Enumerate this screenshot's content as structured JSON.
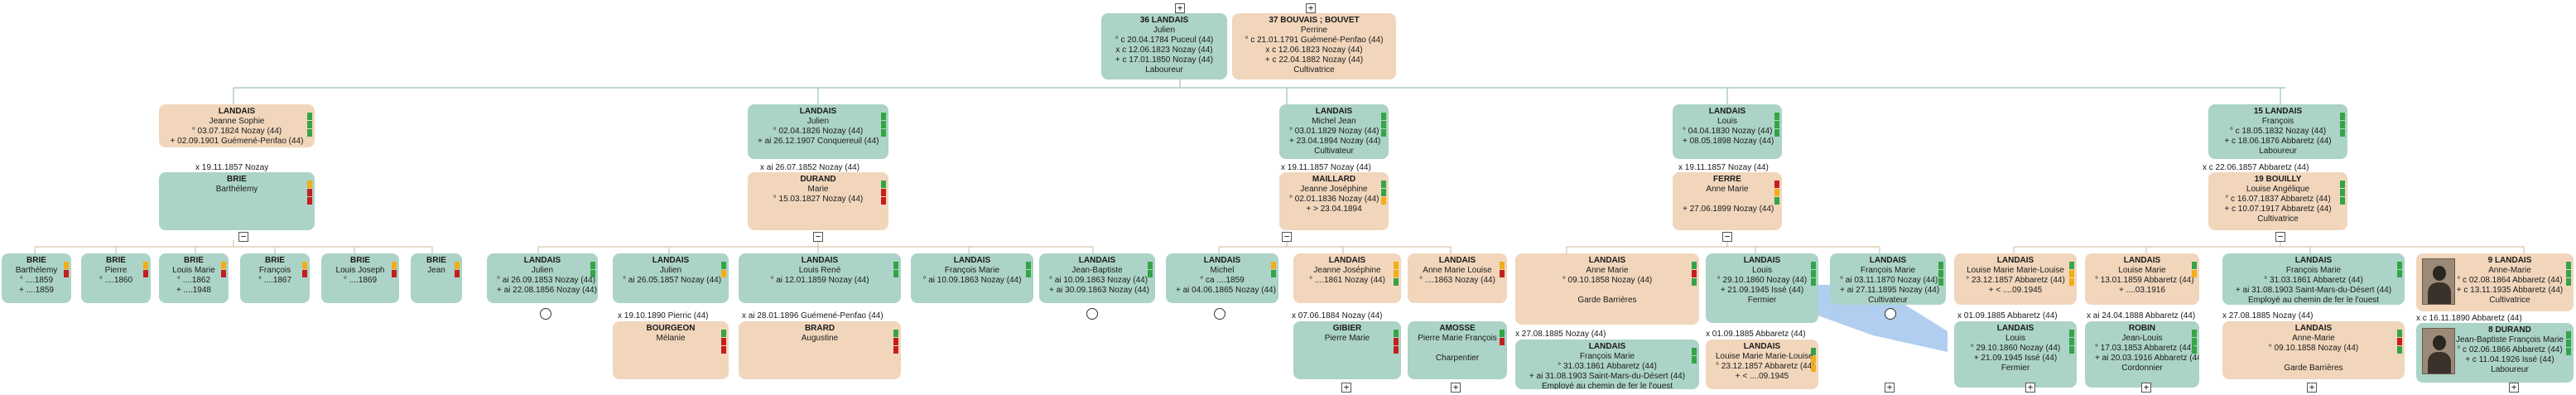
{
  "colors": {
    "male": "#acd3c7",
    "female": "#f1d6bc",
    "link_blue": "#a9c9ef",
    "line": "#9bc2ba"
  },
  "persons": [
    {
      "id": "p36",
      "sex": "m",
      "sosa": "36",
      "surname": "LANDAIS",
      "given": "Julien",
      "lines": [
        "° c 20.04.1784 Puceul (44)",
        "x c 12.06.1823 Nozay (44)",
        "+ c 17.01.1850 Nozay (44)",
        "Laboureur"
      ],
      "flags": []
    },
    {
      "id": "p37",
      "sex": "f",
      "sosa": "37",
      "surname": "BOUVAIS ; BOUVET",
      "given": "Perrine",
      "lines": [
        "° c 21.01.1791 Guémené-Penfao (44)",
        "x c 12.06.1823 Nozay (44)",
        "+ c 22.04.1882 Nozay (44)",
        "Cultivatrice"
      ],
      "flags": []
    },
    {
      "id": "a1",
      "sex": "f",
      "sosa": "",
      "surname": "LANDAIS",
      "given": "Jeanne Sophie",
      "lines": [
        "° 03.07.1824 Nozay (44)",
        "+ 02.09.1901 Guémené-Penfao (44)"
      ],
      "flags": [
        "g",
        "g",
        "g"
      ]
    },
    {
      "id": "a1s",
      "sex": "m",
      "sosa": "",
      "surname": "BRIE",
      "given": "Barthélemy",
      "lines": [],
      "flags": [
        "y",
        "r",
        "r"
      ]
    },
    {
      "id": "a2",
      "sex": "m",
      "sosa": "",
      "surname": "LANDAIS",
      "given": "Julien",
      "lines": [
        "° 02.04.1826 Nozay (44)",
        "+ ai 26.12.1907 Conquereuil (44)"
      ],
      "flags": [
        "g",
        "g",
        "g"
      ]
    },
    {
      "id": "a2s",
      "sex": "f",
      "sosa": "",
      "surname": "DURAND",
      "given": "Marie",
      "lines": [
        "° 15.03.1827 Nozay (44)"
      ],
      "flags": [
        "g",
        "r",
        "r"
      ]
    },
    {
      "id": "a3",
      "sex": "m",
      "sosa": "",
      "surname": "LANDAIS",
      "given": "Michel Jean",
      "lines": [
        "° 03.01.1829 Nozay (44)",
        "+ 23.04.1894 Nozay (44)",
        "Cultivateur"
      ],
      "flags": [
        "g",
        "g",
        "g"
      ]
    },
    {
      "id": "a3s",
      "sex": "f",
      "sosa": "",
      "surname": "MAILLARD",
      "given": "Jeanne Joséphine",
      "lines": [
        "° 02.01.1836 Nozay (44)",
        "+ > 23.04.1894"
      ],
      "flags": [
        "g",
        "g",
        "y"
      ]
    },
    {
      "id": "a4",
      "sex": "m",
      "sosa": "",
      "surname": "LANDAIS",
      "given": "Louis",
      "lines": [
        "° 04.04.1830 Nozay (44)",
        "+ 08.05.1898 Nozay (44)"
      ],
      "flags": [
        "g",
        "g",
        "g"
      ]
    },
    {
      "id": "a4s",
      "sex": "f",
      "sosa": "",
      "surname": "FERRE",
      "given": "Anne Marie",
      "lines": [
        "",
        "+ 27.06.1899 Nozay (44)"
      ],
      "flags": [
        "r",
        "y",
        "g"
      ]
    },
    {
      "id": "a5",
      "sex": "m",
      "sosa": "15",
      "surname": "LANDAIS",
      "given": "François",
      "lines": [
        "° c 18.05.1832 Nozay (44)",
        "+ c 18.06.1876 Abbaretz (44)",
        "Laboureur"
      ],
      "flags": [
        "g",
        "g",
        "g"
      ]
    },
    {
      "id": "a5s",
      "sex": "f",
      "sosa": "19",
      "surname": "BOUILLY",
      "given": "Louise Angélique",
      "lines": [
        "° c 16.07.1837 Abbaretz (44)",
        "+ c 10.07.1917 Abbaretz (44)",
        "Cultivatrice"
      ],
      "flags": [
        "g",
        "g",
        "g"
      ]
    },
    {
      "id": "c1",
      "sex": "m",
      "sosa": "",
      "surname": "BRIE",
      "given": "Barthélemy",
      "lines": [
        "° ....1859",
        "+ ....1859"
      ],
      "flags": [
        "y",
        "r"
      ]
    },
    {
      "id": "c2",
      "sex": "m",
      "sosa": "",
      "surname": "BRIE",
      "given": "Pierre",
      "lines": [
        "° ....1860"
      ],
      "flags": [
        "y",
        "r"
      ]
    },
    {
      "id": "c3",
      "sex": "m",
      "sosa": "",
      "surname": "BRIE",
      "given": "Louis Marie",
      "lines": [
        "° ....1862",
        "+ ....1948"
      ],
      "flags": [
        "y",
        "r"
      ]
    },
    {
      "id": "c4",
      "sex": "m",
      "sosa": "",
      "surname": "BRIE",
      "given": "François",
      "lines": [
        "° ....1867"
      ],
      "flags": [
        "y",
        "r"
      ]
    },
    {
      "id": "c5",
      "sex": "m",
      "sosa": "",
      "surname": "BRIE",
      "given": "Louis Joseph",
      "lines": [
        "° ....1869"
      ],
      "flags": [
        "y",
        "r"
      ]
    },
    {
      "id": "c6",
      "sex": "m",
      "sosa": "",
      "surname": "BRIE",
      "given": "Jean",
      "lines": [],
      "flags": [
        "y",
        "r"
      ]
    },
    {
      "id": "c7",
      "sex": "m",
      "sosa": "",
      "surname": "LANDAIS",
      "given": "Julien",
      "lines": [
        "° ai 26.09.1853 Nozay (44)",
        "+ ai 22.08.1856 Nozay (44)"
      ],
      "flags": [
        "g",
        "g"
      ]
    },
    {
      "id": "c8",
      "sex": "m",
      "sosa": "",
      "surname": "LANDAIS",
      "given": "Julien",
      "lines": [
        "° ai 26.05.1857 Nozay (44)"
      ],
      "flags": [
        "g",
        "y"
      ]
    },
    {
      "id": "c8s",
      "sex": "f",
      "sosa": "",
      "surname": "BOURGEON",
      "given": "Mélanie",
      "lines": [],
      "flags": [
        "g",
        "r",
        "r"
      ]
    },
    {
      "id": "c9",
      "sex": "m",
      "sosa": "",
      "surname": "LANDAIS",
      "given": "Louis René",
      "lines": [
        "° ai 12.01.1859 Nozay (44)"
      ],
      "flags": [
        "g",
        "g"
      ]
    },
    {
      "id": "c9s",
      "sex": "f",
      "sosa": "",
      "surname": "BRARD",
      "given": "Augustine",
      "lines": [],
      "flags": [
        "g",
        "r",
        "r"
      ]
    },
    {
      "id": "c10",
      "sex": "m",
      "sosa": "",
      "surname": "LANDAIS",
      "given": "François Marie",
      "lines": [
        "° ai 10.09.1863 Nozay (44)"
      ],
      "flags": [
        "g",
        "g"
      ]
    },
    {
      "id": "c11",
      "sex": "m",
      "sosa": "",
      "surname": "LANDAIS",
      "given": "Jean-Baptiste",
      "lines": [
        "° ai 10.09.1863 Nozay (44)",
        "+ ai 30.09.1863 Nozay (44)"
      ],
      "flags": [
        "g",
        "g"
      ]
    },
    {
      "id": "c12",
      "sex": "m",
      "sosa": "",
      "surname": "LANDAIS",
      "given": "Michel",
      "lines": [
        "° ca ....1859",
        "+ ai 04.06.1865 Nozay (44)"
      ],
      "flags": [
        "y",
        "g"
      ]
    },
    {
      "id": "c13",
      "sex": "f",
      "sosa": "",
      "surname": "LANDAIS",
      "given": "Jeanne Joséphine",
      "lines": [
        "° ....1861 Nozay (44)"
      ],
      "flags": [
        "y",
        "y",
        "g"
      ]
    },
    {
      "id": "c13s",
      "sex": "m",
      "sosa": "",
      "surname": "GIBIER",
      "given": "Pierre Marie",
      "lines": [],
      "flags": [
        "g",
        "r",
        "r"
      ]
    },
    {
      "id": "c14",
      "sex": "f",
      "sosa": "",
      "surname": "LANDAIS",
      "given": "Anne Marie Louise",
      "lines": [
        "° ....1863 Nozay (44)"
      ],
      "flags": [
        "y",
        "r"
      ]
    },
    {
      "id": "c14s",
      "sex": "m",
      "sosa": "",
      "surname": "AMOSSE",
      "given": "Pierre Marie François",
      "lines": [
        "",
        "Charpentier"
      ],
      "flags": [
        "g",
        "r"
      ]
    },
    {
      "id": "c15",
      "sex": "f",
      "sosa": "",
      "surname": "LANDAIS",
      "given": "Anne Marie",
      "lines": [
        "° 09.10.1858 Nozay (44)",
        "",
        "Garde Barrières"
      ],
      "flags": [
        "g",
        "r",
        "g"
      ]
    },
    {
      "id": "c15s",
      "sex": "m",
      "sosa": "",
      "surname": "LANDAIS",
      "given": "François Marie",
      "lines": [
        "° 31.03.1861 Abbaretz (44)",
        "+ ai 31.08.1903 Saint-Mars-du-Désert (44)",
        "Employé au chemin de fer le l'ouest"
      ],
      "flags": [
        "g",
        "g"
      ]
    },
    {
      "id": "c16",
      "sex": "m",
      "sosa": "",
      "surname": "LANDAIS",
      "given": "Louis",
      "lines": [
        "° 29.10.1860 Nozay (44)",
        "+ 21.09.1945 Issé (44)",
        "Fermier"
      ],
      "flags": [
        "g",
        "g",
        "g"
      ]
    },
    {
      "id": "c16s",
      "sex": "f",
      "sosa": "",
      "surname": "LANDAIS",
      "given": "Louise Marie Marie-Louise",
      "lines": [
        "° 23.12.1857 Abbaretz (44)",
        "+ < ....09.1945"
      ],
      "flags": [
        "g",
        "y",
        "y"
      ]
    },
    {
      "id": "c17",
      "sex": "m",
      "sosa": "",
      "surname": "LANDAIS",
      "given": "François Marie",
      "lines": [
        "° ai 03.11.1870 Nozay (44)",
        "+ ai 27.11.1895 Nozay (44)",
        "Cultivateur"
      ],
      "flags": [
        "g",
        "g",
        "g"
      ]
    },
    {
      "id": "c18",
      "sex": "f",
      "sosa": "",
      "surname": "LANDAIS",
      "given": "Louise Marie Marie-Louise",
      "lines": [
        "° 23.12.1857 Abbaretz (44)",
        "+ < ....09.1945"
      ],
      "flags": [
        "g",
        "y",
        "y"
      ]
    },
    {
      "id": "c18s",
      "sex": "m",
      "sosa": "",
      "surname": "LANDAIS",
      "given": "Louis",
      "lines": [
        "° 29.10.1860 Nozay (44)",
        "+ 21.09.1945 Issé (44)",
        "Fermier"
      ],
      "flags": [
        "g",
        "g",
        "g"
      ]
    },
    {
      "id": "c19",
      "sex": "f",
      "sosa": "",
      "surname": "LANDAIS",
      "given": "Louise Marie",
      "lines": [
        "° 13.01.1859 Abbaretz (44)",
        "+ ....03.1916"
      ],
      "flags": [
        "g",
        "y"
      ]
    },
    {
      "id": "c19s",
      "sex": "m",
      "sosa": "",
      "surname": "ROBIN",
      "given": "Jean-Louis",
      "lines": [
        "° 17.03.1853 Abbaretz (44)",
        "+ ai 20.03.1916 Abbaretz (44)",
        "Cordonnier"
      ],
      "flags": [
        "g",
        "g",
        "g"
      ]
    },
    {
      "id": "c20",
      "sex": "m",
      "sosa": "",
      "surname": "LANDAIS",
      "given": "François Marie",
      "lines": [
        "° 31.03.1861 Abbaretz (44)",
        "+ ai 31.08.1903 Saint-Mars-du-Désert (44)",
        "Employé au chemin de fer le l'ouest"
      ],
      "flags": [
        "g",
        "g"
      ]
    },
    {
      "id": "c20s",
      "sex": "f",
      "sosa": "",
      "surname": "LANDAIS",
      "given": "Anne-Marie",
      "lines": [
        "° 09.10.1858 Nozay (44)",
        "",
        "Garde Barrières"
      ],
      "flags": [
        "g",
        "r",
        "g"
      ]
    },
    {
      "id": "c21",
      "sex": "f",
      "sosa": "9",
      "surname": "LANDAIS",
      "given": "Anne-Marie",
      "lines": [
        "° c 02.08.1864 Abbaretz (44)",
        "+ c 13.11.1935 Abbaretz (44)",
        "Cultivatrice"
      ],
      "flags": [
        "g",
        "g",
        "g"
      ]
    },
    {
      "id": "c21s",
      "sex": "m",
      "sosa": "8",
      "surname": "DURAND",
      "given": "Jean-Baptiste François Marie",
      "lines": [
        "° c 02.06.1866 Abbaretz (44)",
        "+ c 11.04.1926 Issé (44)",
        "Laboureur"
      ],
      "flags": [
        "g",
        "g",
        "g"
      ]
    }
  ],
  "marriages": [
    {
      "id": "m_a1",
      "text": "x 19.11.1857 Nozay"
    },
    {
      "id": "m_a2",
      "text": "x ai 26.07.1852 Nozay (44)"
    },
    {
      "id": "m_a3",
      "text": "x 19.11.1857 Nozay (44)"
    },
    {
      "id": "m_a4",
      "text": "x 19.11.1857 Nozay (44)"
    },
    {
      "id": "m_a5",
      "text": "x c 22.06.1857 Abbaretz (44)"
    },
    {
      "id": "m_c8",
      "text": "x 19.10.1890 Pierric (44)"
    },
    {
      "id": "m_c9",
      "text": "x ai 28.01.1896 Guémené-Penfao (44)"
    },
    {
      "id": "m_c13",
      "text": "x 07.06.1884 Nozay (44)"
    },
    {
      "id": "m_c15",
      "text": "x 27.08.1885 Nozay (44)"
    },
    {
      "id": "m_c16",
      "text": "x 01.09.1885 Abbaretz (44)"
    },
    {
      "id": "m_c18",
      "text": "x 01.09.1885 Abbaretz (44)"
    },
    {
      "id": "m_c19",
      "text": "x ai 24.04.1888 Abbaretz (44)"
    },
    {
      "id": "m_c20",
      "text": "x 27.08.1885 Nozay (44)"
    },
    {
      "id": "m_c21",
      "text": "x c 16.11.1890 Abbaretz (44)"
    }
  ],
  "buttons": {
    "expand": "+",
    "collapse": "−"
  }
}
